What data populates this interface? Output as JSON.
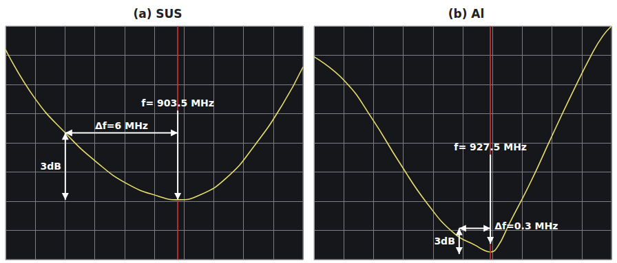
{
  "chart_data": [
    {
      "type": "line",
      "title": "(a) SUS",
      "x": [
        0,
        0.97,
        2.01,
        3.06,
        4.1,
        5.14,
        5.79,
        6.53,
        7.45,
        8.38,
        9.31,
        10
      ],
      "values": [
        7.2,
        5.55,
        4.34,
        3.34,
        2.59,
        2.17,
        2.05,
        2.21,
        2.82,
        3.92,
        5.31,
        6.6
      ],
      "color": "#e8df6c",
      "xlim": [
        0,
        10
      ],
      "ylim": [
        0,
        8
      ],
      "xticks": [
        0,
        1,
        2,
        3,
        4,
        5,
        6,
        7,
        8,
        9,
        10
      ],
      "yticks": [
        0,
        1,
        2,
        3,
        4,
        5,
        6,
        7,
        8
      ],
      "grid": true,
      "tick_labels": false,
      "cursor": {
        "x": 5.79,
        "color": "#e03030"
      },
      "annotations": {
        "resonance": {
          "label": "f= 903.5 MHz",
          "x": 5.79,
          "y": 2.05
        },
        "bandwidth": {
          "label": "Δf=6 MHz",
          "x_start": 2.01,
          "x_end": 5.79,
          "y": 4.34
        },
        "level": {
          "label": "3dB",
          "x": 2.01,
          "y_top": 4.34,
          "y_bottom": 2.05
        }
      }
    },
    {
      "type": "line",
      "title": "(b) Al",
      "x": [
        0,
        1.02,
        1.94,
        2.87,
        3.8,
        4.72,
        5.42,
        5.76,
        5.93,
        6.16,
        6.57,
        7.27,
        7.96,
        8.66,
        9.35,
        9.7,
        10
      ],
      "values": [
        6.95,
        6.13,
        4.85,
        3.33,
        1.93,
        0.89,
        0.49,
        0.3,
        0.26,
        0.42,
        1.24,
        2.63,
        4.15,
        5.66,
        7.06,
        7.65,
        8
      ],
      "color": "#e8df6c",
      "xlim": [
        0,
        10
      ],
      "ylim": [
        0,
        8
      ],
      "xticks": [
        0,
        1,
        2,
        3,
        4,
        5,
        6,
        7,
        8,
        9,
        10
      ],
      "yticks": [
        0,
        1,
        2,
        3,
        4,
        5,
        6,
        7,
        8
      ],
      "grid": true,
      "tick_labels": false,
      "cursor": {
        "x": 5.93,
        "color": "#e03030"
      },
      "annotations": {
        "resonance": {
          "label": "f= 927.5 MHz",
          "x": 5.93,
          "y": 0.54
        },
        "bandwidth": {
          "label": "Δf=0.3 MHz",
          "x_start": 4.88,
          "x_end": 5.93,
          "y": 1.07
        },
        "level": {
          "label": "3dB",
          "x": 4.88,
          "y_top": 1.07,
          "y_bottom": 0.19
        }
      }
    }
  ]
}
